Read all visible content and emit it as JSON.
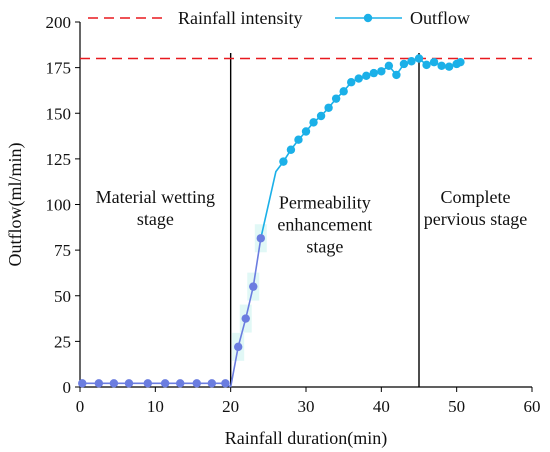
{
  "chart_data": {
    "type": "line",
    "title": "",
    "xlabel": "Rainfall duration(min)",
    "ylabel": "Outflow(ml/min)",
    "xlim": [
      0,
      60
    ],
    "ylim": [
      0,
      200
    ],
    "xticks": [
      0,
      10,
      20,
      30,
      40,
      50,
      60
    ],
    "yticks": [
      0,
      25,
      50,
      75,
      100,
      125,
      150,
      175,
      200
    ],
    "grid": false,
    "legend_position": "top",
    "series": [
      {
        "name": "Outflow",
        "color": "#1bb0e8",
        "marker": "circle",
        "x": [
          0.3,
          2.5,
          4.5,
          6.5,
          9,
          11.3,
          13.3,
          15.5,
          17.5,
          19.3,
          21,
          22,
          23,
          24,
          26,
          27,
          28,
          29,
          30,
          31,
          32,
          33,
          34,
          35,
          36,
          37,
          38,
          39,
          40,
          41,
          42,
          43,
          44,
          45,
          46,
          47,
          48,
          49,
          50,
          50.5
        ],
        "y": [
          2,
          2,
          2,
          2,
          2,
          2,
          2,
          2,
          2,
          2,
          22,
          37.5,
          55,
          81.5,
          118,
          123.5,
          130,
          135.5,
          140,
          145,
          148.5,
          153,
          158,
          162,
          167,
          169,
          170.5,
          172,
          173,
          176,
          171,
          177,
          178.5,
          180,
          176.5,
          178,
          176,
          175.5,
          177,
          178
        ]
      },
      {
        "name": "Rainfall intensity",
        "color": "#e8191f",
        "style": "dashed",
        "value": 180
      }
    ],
    "stage_lines_x": [
      20,
      45
    ],
    "stage_labels": [
      {
        "lines": [
          "Material wetting",
          "stage"
        ],
        "x": 10,
        "y": 98
      },
      {
        "lines": [
          "Permeability",
          "enhancement",
          "stage"
        ],
        "x": 32.5,
        "y": 89
      },
      {
        "lines": [
          "Complete",
          "pervious stage"
        ],
        "x": 52.5,
        "y": 98
      }
    ]
  }
}
